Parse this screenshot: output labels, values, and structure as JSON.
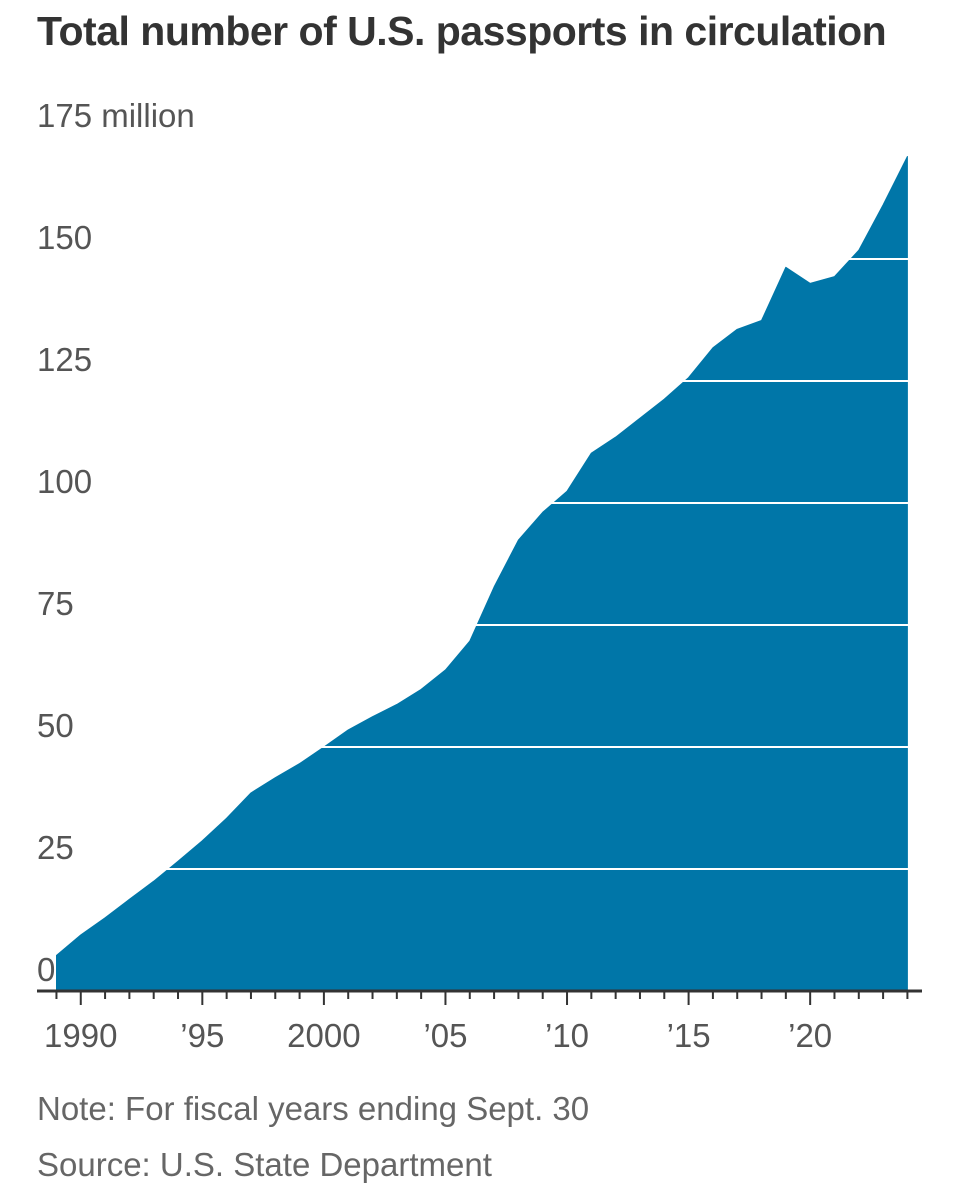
{
  "colors": {
    "area_fill": "#0076a8",
    "gridline_top": "#d9d9d9",
    "gridline_overlay": "#ffffff",
    "axis": "#333333",
    "text_title": "#333333",
    "text_tick": "#555555",
    "text_note": "#666666"
  },
  "chart_data": {
    "type": "area",
    "title": "Total number of U.S. passports in circulation",
    "xlabel": "",
    "ylabel": "",
    "x_range": [
      1988.2,
      2024.6
    ],
    "ylim": [
      0,
      175
    ],
    "y_unit_label": "175 million",
    "y_ticks": [
      {
        "value": 0,
        "label": "0"
      },
      {
        "value": 25,
        "label": "25"
      },
      {
        "value": 50,
        "label": "50"
      },
      {
        "value": 75,
        "label": "75"
      },
      {
        "value": 100,
        "label": "100"
      },
      {
        "value": 125,
        "label": "125"
      },
      {
        "value": 150,
        "label": "150"
      },
      {
        "value": 175,
        "label": "175 million"
      }
    ],
    "x_ticks": [
      {
        "value": 1990,
        "label": "1990"
      },
      {
        "value": 1995,
        "label": "’95"
      },
      {
        "value": 2000,
        "label": "2000"
      },
      {
        "value": 2005,
        "label": "’05"
      },
      {
        "value": 2010,
        "label": "’10"
      },
      {
        "value": 2015,
        "label": "’15"
      },
      {
        "value": 2020,
        "label": "’20"
      }
    ],
    "grid": true,
    "series": [
      {
        "name": "Passports in circulation (millions)",
        "x": [
          1989,
          1990,
          1991,
          1992,
          1993,
          1994,
          1995,
          1996,
          1997,
          1998,
          1999,
          2000,
          2001,
          2002,
          2003,
          2004,
          2005,
          2006,
          2007,
          2008,
          2009,
          2010,
          2011,
          2012,
          2013,
          2014,
          2015,
          2016,
          2017,
          2018,
          2019,
          2020,
          2021,
          2022,
          2023,
          2024
        ],
        "values": [
          7.3,
          11.5,
          15,
          18.8,
          22.5,
          26.6,
          30.8,
          35.4,
          40.6,
          43.7,
          46.6,
          50,
          53.5,
          56.2,
          58.7,
          61.8,
          65.8,
          71.7,
          82.8,
          92.4,
          98.1,
          102.4,
          110.2,
          113.5,
          117.4,
          121.3,
          125.7,
          131.8,
          135.6,
          137.4,
          148.3,
          145,
          146.4,
          151.8,
          161.1,
          171
        ]
      }
    ]
  },
  "notes": {
    "note": "Note: For fiscal years ending Sept. 30",
    "source": "Source: U.S. State Department"
  }
}
